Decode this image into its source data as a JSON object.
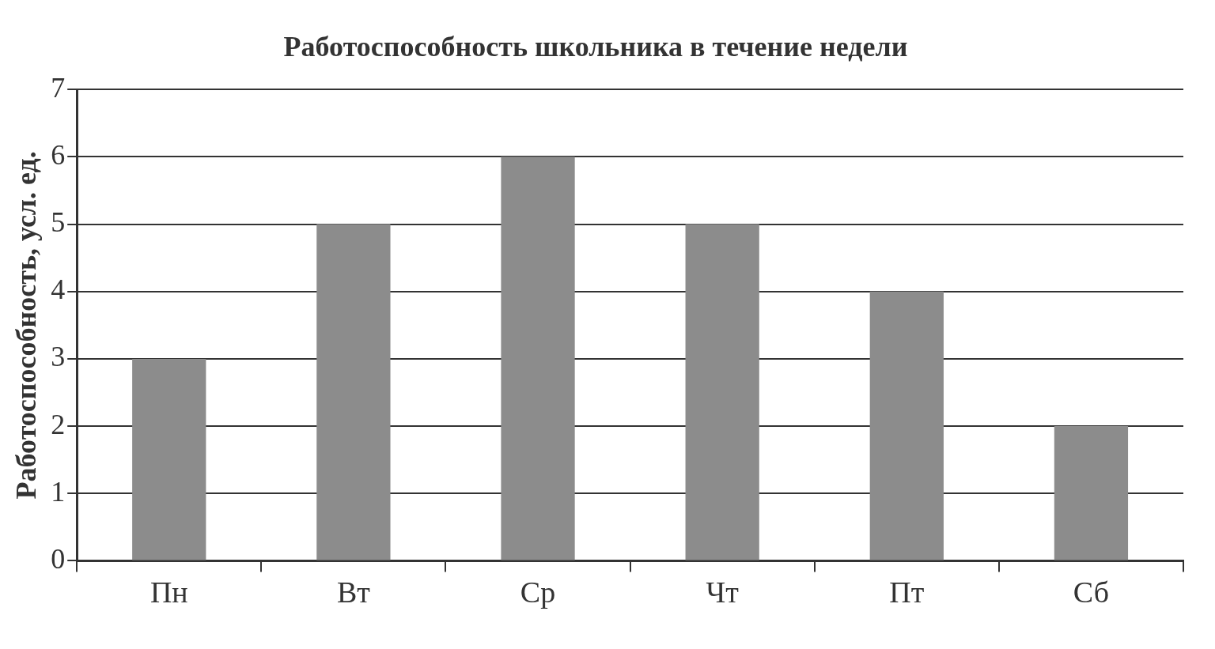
{
  "chart_data": {
    "type": "bar",
    "title": "Работоспособность школьника в течение недели",
    "ylabel": "Работоспособность, усл. ед.",
    "categories": [
      "Пн",
      "Вт",
      "Ср",
      "Чт",
      "Пт",
      "Сб"
    ],
    "values": [
      3,
      5,
      6,
      5,
      4,
      2
    ],
    "color": "#8c8c8c",
    "ylim": [
      0,
      7
    ],
    "yticks": [
      0,
      1,
      2,
      3,
      4,
      5,
      6,
      7
    ],
    "grid": "y",
    "legend": false
  }
}
